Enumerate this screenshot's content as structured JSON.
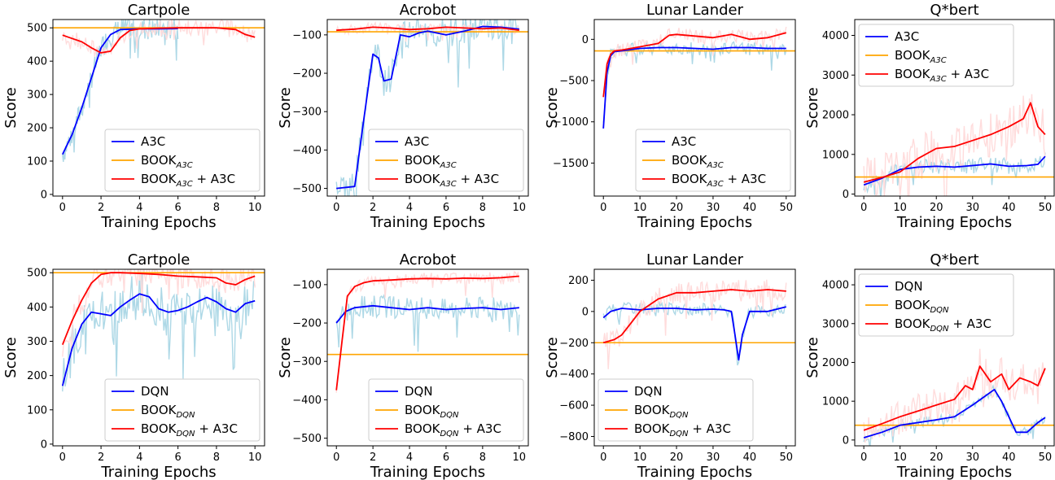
{
  "chart_data": [
    {
      "type": "line",
      "title": "Cartpole",
      "xlabel": "Training Epochs",
      "ylabel": "Score",
      "xlim": [
        -0.5,
        10.5
      ],
      "ylim": [
        -5,
        525
      ],
      "xticks": [
        0,
        2,
        4,
        6,
        8,
        10
      ],
      "xtick_labels": [
        "0",
        "2",
        "4",
        "6",
        "8",
        "10"
      ],
      "yticks": [
        0,
        100,
        200,
        300,
        400,
        500
      ],
      "ytick_labels": [
        "0",
        "100",
        "200",
        "300",
        "400",
        "500"
      ],
      "legend_position": "lower-right",
      "hline": {
        "y": 500,
        "color": "#ffa500",
        "legend_base": "BOOK",
        "legend_sub": "A3C"
      },
      "series": [
        {
          "name": "A3C",
          "color": "#0000ff",
          "raw_color": "#add8e6",
          "x_end": 6,
          "noise": 35,
          "x": [
            0,
            0.5,
            1,
            1.5,
            2,
            2.5,
            3,
            4,
            5,
            6
          ],
          "y": [
            120,
            180,
            260,
            350,
            440,
            480,
            495,
            497,
            497,
            498
          ]
        },
        {
          "name": "A3C",
          "legend_base": "BOOK",
          "legend_sub": "A3C",
          "legend_suffix": " + A3C",
          "color": "#ff0000",
          "raw_color": "#ffdcdc",
          "x_end": 10,
          "noise": 25,
          "x": [
            0,
            0.5,
            1,
            1.5,
            2,
            2.5,
            3,
            3.5,
            4,
            5,
            6,
            7,
            8,
            9,
            9.5,
            10
          ],
          "y": [
            478,
            468,
            458,
            440,
            425,
            430,
            470,
            492,
            497,
            499,
            500,
            500,
            500,
            495,
            480,
            472
          ]
        }
      ]
    },
    {
      "type": "line",
      "title": "Acrobot",
      "xlabel": "Training Epochs",
      "ylabel": "Score",
      "xlim": [
        -0.5,
        10.5
      ],
      "ylim": [
        -520,
        -60
      ],
      "xticks": [
        0,
        2,
        4,
        6,
        8,
        10
      ],
      "xtick_labels": [
        "0",
        "2",
        "4",
        "6",
        "8",
        "10"
      ],
      "yticks": [
        -500,
        -400,
        -300,
        -200,
        -100
      ],
      "ytick_labels": [
        "−500",
        "−400",
        "−300",
        "−200",
        "−100"
      ],
      "legend_position": "lower-right",
      "hline": {
        "y": -92,
        "color": "#ffa500",
        "legend_base": "BOOK",
        "legend_sub": "A3C"
      },
      "series": [
        {
          "name": "A3C",
          "color": "#0000ff",
          "raw_color": "#add8e6",
          "x_end": 10,
          "noise": 40,
          "x": [
            0,
            1,
            1.5,
            2,
            2.3,
            2.6,
            3,
            3.5,
            4,
            4.5,
            5,
            6,
            7,
            8,
            9,
            10
          ],
          "y": [
            -500,
            -495,
            -320,
            -150,
            -160,
            -220,
            -215,
            -100,
            -105,
            -95,
            -90,
            -100,
            -90,
            -78,
            -80,
            -85
          ]
        },
        {
          "name": "A3C",
          "legend_base": "BOOK",
          "legend_sub": "A3C",
          "legend_suffix": " + A3C",
          "color": "#ff0000",
          "raw_color": "#ffdcdc",
          "x_end": 10,
          "noise": 12,
          "x": [
            0,
            1,
            2,
            3,
            4,
            5,
            6,
            7,
            8,
            9,
            10
          ],
          "y": [
            -88,
            -85,
            -80,
            -82,
            -86,
            -84,
            -80,
            -82,
            -84,
            -82,
            -88
          ]
        }
      ]
    },
    {
      "type": "line",
      "title": "Lunar Lander",
      "xlabel": "Training Epochs",
      "ylabel": "Score",
      "xlim": [
        -2.5,
        52.5
      ],
      "ylim": [
        -1900,
        240
      ],
      "xticks": [
        0,
        10,
        20,
        30,
        40,
        50
      ],
      "xtick_labels": [
        "0",
        "10",
        "20",
        "30",
        "40",
        "50"
      ],
      "yticks": [
        -1500,
        -1000,
        -500,
        0
      ],
      "ytick_labels": [
        "−1500",
        "−1000",
        "−500",
        "0"
      ],
      "legend_position": "lower-right",
      "hline": {
        "y": -140,
        "color": "#ffa500",
        "legend_base": "BOOK",
        "legend_sub": "A3C"
      },
      "series": [
        {
          "name": "A3C",
          "color": "#0000ff",
          "raw_color": "#add8e6",
          "x_end": 50,
          "noise": 80,
          "x": [
            0,
            1,
            2,
            3,
            5,
            10,
            15,
            20,
            25,
            30,
            35,
            40,
            45,
            50
          ],
          "y": [
            -1080,
            -400,
            -200,
            -150,
            -140,
            -110,
            -100,
            -100,
            -110,
            -120,
            -100,
            -100,
            -110,
            -110
          ]
        },
        {
          "name": "A3C",
          "legend_base": "BOOK",
          "legend_sub": "A3C",
          "legend_suffix": " + A3C",
          "color": "#ff0000",
          "raw_color": "#ffdcdc",
          "x_end": 50,
          "noise": 90,
          "x": [
            0,
            1,
            2,
            3,
            5,
            10,
            15,
            18,
            20,
            25,
            30,
            35,
            40,
            45,
            50
          ],
          "y": [
            -700,
            -300,
            -180,
            -140,
            -130,
            -90,
            -50,
            50,
            60,
            40,
            20,
            60,
            0,
            20,
            80
          ]
        }
      ]
    },
    {
      "type": "line",
      "title": "Q*bert",
      "xlabel": "Training Epochs",
      "ylabel": "Score",
      "xlim": [
        -2.5,
        52.5
      ],
      "ylim": [
        -50,
        4400
      ],
      "xticks": [
        0,
        10,
        20,
        30,
        40,
        50
      ],
      "xtick_labels": [
        "0",
        "10",
        "20",
        "30",
        "40",
        "50"
      ],
      "yticks": [
        0,
        1000,
        2000,
        3000,
        4000
      ],
      "ytick_labels": [
        "0",
        "1000",
        "2000",
        "3000",
        "4000"
      ],
      "legend_position": "upper-left",
      "hline": {
        "y": 430,
        "color": "#ffa500",
        "legend_base": "BOOK",
        "legend_sub": "A3C"
      },
      "series": [
        {
          "name": "A3C",
          "color": "#0000ff",
          "raw_color": "#add8e6",
          "x_end": 50,
          "noise": 200,
          "x": [
            0,
            5,
            10,
            15,
            20,
            25,
            30,
            35,
            40,
            45,
            48,
            50
          ],
          "y": [
            230,
            400,
            620,
            680,
            700,
            680,
            720,
            760,
            700,
            720,
            750,
            950
          ]
        },
        {
          "name": "A3C",
          "legend_base": "BOOK",
          "legend_sub": "A3C",
          "legend_suffix": " + A3C",
          "color": "#ff0000",
          "raw_color": "#ffdcdc",
          "x_end": 50,
          "noise": 600,
          "x": [
            0,
            5,
            10,
            15,
            20,
            25,
            30,
            35,
            40,
            44,
            46,
            48,
            50
          ],
          "y": [
            300,
            420,
            560,
            900,
            1150,
            1200,
            1350,
            1500,
            1700,
            1900,
            2300,
            1700,
            1500
          ]
        }
      ]
    },
    {
      "type": "line",
      "title": "Cartpole",
      "xlabel": "Training Epochs",
      "ylabel": "Score",
      "xlim": [
        -0.5,
        10.5
      ],
      "ylim": [
        -5,
        510
      ],
      "xticks": [
        0,
        2,
        4,
        6,
        8,
        10
      ],
      "xtick_labels": [
        "0",
        "2",
        "4",
        "6",
        "8",
        "10"
      ],
      "yticks": [
        0,
        100,
        200,
        300,
        400,
        500
      ],
      "ytick_labels": [
        "0",
        "100",
        "200",
        "300",
        "400",
        "500"
      ],
      "legend_position": "lower-right",
      "hline": {
        "y": 500,
        "color": "#ffa500",
        "legend_base": "BOOK",
        "legend_sub": "DQN"
      },
      "series": [
        {
          "name": "DQN",
          "color": "#0000ff",
          "raw_color": "#add8e6",
          "x_end": 10,
          "noise": 70,
          "x": [
            0,
            0.5,
            1,
            1.5,
            2,
            2.5,
            3,
            3.5,
            4,
            4.5,
            5,
            5.5,
            6,
            6.5,
            7,
            7.5,
            8,
            8.5,
            9,
            9.5,
            10
          ],
          "y": [
            170,
            280,
            350,
            385,
            380,
            375,
            400,
            420,
            438,
            430,
            395,
            385,
            390,
            400,
            415,
            428,
            415,
            395,
            385,
            410,
            418
          ]
        },
        {
          "name": "DQN",
          "legend_base": "BOOK",
          "legend_sub": "DQN",
          "legend_suffix": " + A3C",
          "color": "#ff0000",
          "raw_color": "#ffdcdc",
          "x_end": 10,
          "noise": 40,
          "x": [
            0,
            0.5,
            1,
            1.5,
            2,
            2.5,
            3,
            4,
            5,
            6,
            7,
            8,
            8.5,
            9,
            9.5,
            10
          ],
          "y": [
            290,
            360,
            420,
            470,
            495,
            500,
            500,
            498,
            495,
            490,
            488,
            485,
            470,
            465,
            480,
            490
          ]
        }
      ]
    },
    {
      "type": "line",
      "title": "Acrobot",
      "xlabel": "Training Epochs",
      "ylabel": "Score",
      "xlim": [
        -0.5,
        10.5
      ],
      "ylim": [
        -520,
        -60
      ],
      "xticks": [
        0,
        2,
        4,
        6,
        8,
        10
      ],
      "xtick_labels": [
        "0",
        "2",
        "4",
        "6",
        "8",
        "10"
      ],
      "yticks": [
        -500,
        -400,
        -300,
        -200,
        -100
      ],
      "ytick_labels": [
        "−500",
        "−400",
        "−300",
        "−200",
        "−100"
      ],
      "legend_position": "lower-right",
      "hline": {
        "y": -282,
        "color": "#ffa500",
        "legend_base": "BOOK",
        "legend_sub": "DQN"
      },
      "series": [
        {
          "name": "DQN",
          "color": "#0000ff",
          "raw_color": "#add8e6",
          "x_end": 10,
          "noise": 30,
          "x": [
            0,
            0.5,
            1,
            2,
            3,
            4,
            5,
            6,
            7,
            8,
            9,
            10
          ],
          "y": [
            -200,
            -170,
            -160,
            -155,
            -160,
            -165,
            -160,
            -165,
            -162,
            -160,
            -165,
            -160
          ]
        },
        {
          "name": "DQN",
          "legend_base": "BOOK",
          "legend_sub": "DQN",
          "legend_suffix": " + A3C",
          "color": "#ff0000",
          "raw_color": "#ffdcdc",
          "x_end": 10,
          "noise": 15,
          "x": [
            0,
            0.3,
            0.6,
            1,
            1.5,
            2,
            3,
            4,
            5,
            6,
            7,
            8,
            9,
            10
          ],
          "y": [
            -375,
            -250,
            -130,
            -105,
            -95,
            -90,
            -88,
            -85,
            -84,
            -85,
            -83,
            -84,
            -82,
            -78
          ]
        }
      ]
    },
    {
      "type": "line",
      "title": "Lunar Lander",
      "xlabel": "Training Epochs",
      "ylabel": "Score",
      "xlim": [
        -2.5,
        52.5
      ],
      "ylim": [
        -860,
        270
      ],
      "xticks": [
        0,
        10,
        20,
        30,
        40,
        50
      ],
      "xtick_labels": [
        "0",
        "10",
        "20",
        "30",
        "40",
        "50"
      ],
      "yticks": [
        -800,
        -600,
        -400,
        -200,
        0,
        200
      ],
      "ytick_labels": [
        "−800",
        "−600",
        "−400",
        "−200",
        "0",
        "200"
      ],
      "legend_position": "lower-left",
      "hline": {
        "y": -200,
        "color": "#ffa500",
        "legend_base": "BOOK",
        "legend_sub": "DQN"
      },
      "series": [
        {
          "name": "DQN",
          "color": "#0000ff",
          "raw_color": "#add8e6",
          "x_end": 50,
          "noise": 40,
          "x": [
            0,
            2,
            5,
            10,
            15,
            20,
            25,
            30,
            33,
            35,
            36,
            37,
            38,
            40,
            45,
            50
          ],
          "y": [
            -40,
            0,
            20,
            10,
            20,
            20,
            10,
            15,
            10,
            0,
            -150,
            -310,
            -150,
            0,
            0,
            30
          ]
        },
        {
          "name": "DQN",
          "legend_base": "BOOK",
          "legend_sub": "DQN",
          "legend_suffix": " + A3C",
          "color": "#ff0000",
          "raw_color": "#ffdcdc",
          "x_end": 50,
          "noise": 70,
          "x": [
            0,
            3,
            5,
            8,
            10,
            15,
            20,
            25,
            30,
            35,
            40,
            45,
            50
          ],
          "y": [
            -200,
            -180,
            -150,
            -60,
            0,
            80,
            120,
            120,
            130,
            140,
            130,
            140,
            130
          ]
        }
      ]
    },
    {
      "type": "line",
      "title": "Q*bert",
      "xlabel": "Training Epochs",
      "ylabel": "Score",
      "xlim": [
        -2.5,
        52.5
      ],
      "ylim": [
        -150,
        4400
      ],
      "xticks": [
        0,
        10,
        20,
        30,
        40,
        50
      ],
      "xtick_labels": [
        "0",
        "10",
        "20",
        "30",
        "40",
        "50"
      ],
      "yticks": [
        0,
        1000,
        2000,
        3000,
        4000
      ],
      "ytick_labels": [
        "0",
        "1000",
        "2000",
        "3000",
        "4000"
      ],
      "legend_position": "upper-left",
      "hline": {
        "y": 380,
        "color": "#ffa500",
        "legend_base": "BOOK",
        "legend_sub": "DQN"
      },
      "series": [
        {
          "name": "DQN",
          "color": "#0000ff",
          "raw_color": "#add8e6",
          "x_end": 50,
          "noise": 120,
          "x": [
            0,
            5,
            10,
            15,
            20,
            25,
            30,
            33,
            36,
            38,
            40,
            42,
            45,
            48,
            50
          ],
          "y": [
            60,
            200,
            380,
            450,
            520,
            600,
            900,
            1100,
            1300,
            1000,
            600,
            200,
            200,
            450,
            580
          ]
        },
        {
          "name": "DQN",
          "legend_base": "BOOK",
          "legend_sub": "DQN",
          "legend_suffix": " + A3C",
          "color": "#ff0000",
          "raw_color": "#ffdcdc",
          "x_end": 50,
          "noise": 450,
          "x": [
            0,
            5,
            10,
            15,
            20,
            25,
            28,
            30,
            32,
            35,
            38,
            40,
            43,
            46,
            48,
            50
          ],
          "y": [
            250,
            420,
            600,
            750,
            900,
            1050,
            1400,
            1300,
            1900,
            1500,
            1700,
            1300,
            1600,
            1500,
            1400,
            1850
          ]
        }
      ]
    }
  ]
}
